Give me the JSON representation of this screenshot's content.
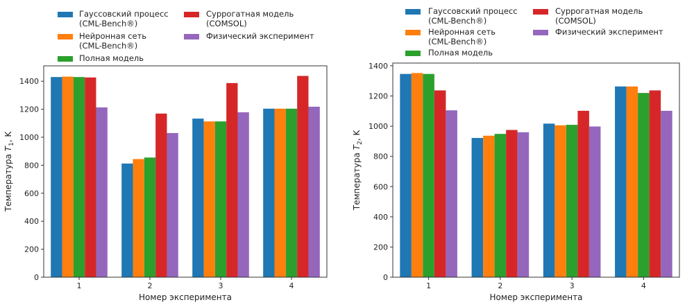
{
  "chart_data": [
    {
      "type": "bar",
      "categories": [
        "1",
        "2",
        "3",
        "4"
      ],
      "xlabel": "Номер эксперимента",
      "ylabel": {
        "prefix": "Температура ",
        "var": "T",
        "sub": "1",
        "suffix": ", K"
      },
      "ylim": [
        0,
        1510
      ],
      "yticks": [
        0,
        200,
        400,
        600,
        800,
        1000,
        1200,
        1400
      ],
      "grid": false,
      "legend": "top",
      "series": [
        {
          "name": "Гауссовский процесс\n(CML-Bench®)",
          "color": "#1f77b4",
          "values": [
            1430,
            812,
            1133,
            1204
          ]
        },
        {
          "name": "Нейронная сеть\n(CML-Bench®)",
          "color": "#ff7f0e",
          "values": [
            1433,
            844,
            1113,
            1204
          ]
        },
        {
          "name": "Полная модель",
          "color": "#2ca02c",
          "values": [
            1430,
            855,
            1113,
            1204
          ]
        },
        {
          "name": "Суррогатная модель\n(COMSOL)",
          "color": "#d62728",
          "values": [
            1427,
            1169,
            1387,
            1438
          ]
        },
        {
          "name": "Физический эксперимент",
          "color": "#9467bd",
          "values": [
            1213,
            1030,
            1178,
            1218
          ]
        }
      ]
    },
    {
      "type": "bar",
      "categories": [
        "1",
        "2",
        "3",
        "4"
      ],
      "xlabel": "Номер эксперимента",
      "ylabel": {
        "prefix": "Температура ",
        "var": "T",
        "sub": "2",
        "suffix": ", K"
      },
      "ylim": [
        0,
        1418
      ],
      "yticks": [
        0,
        200,
        400,
        600,
        800,
        1000,
        1200,
        1400
      ],
      "grid": false,
      "legend": "top",
      "series": [
        {
          "name": "Гауссовский процесс\n(CML-Bench®)",
          "color": "#1f77b4",
          "values": [
            1346,
            922,
            1017,
            1263
          ]
        },
        {
          "name": "Нейронная сеть\n(CML-Bench®)",
          "color": "#ff7f0e",
          "values": [
            1352,
            937,
            1006,
            1263
          ]
        },
        {
          "name": "Полная модель",
          "color": "#2ca02c",
          "values": [
            1346,
            949,
            1009,
            1220
          ]
        },
        {
          "name": "Суррогатная модель\n(COMSOL)",
          "color": "#d62728",
          "values": [
            1237,
            975,
            1102,
            1237
          ]
        },
        {
          "name": "Физический эксперимент",
          "color": "#9467bd",
          "values": [
            1105,
            960,
            998,
            1102
          ]
        }
      ]
    }
  ]
}
